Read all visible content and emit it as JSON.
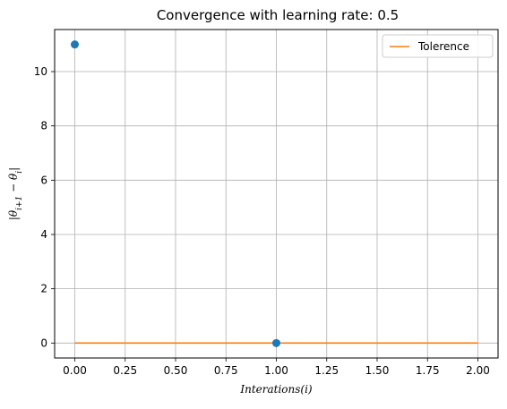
{
  "chart_data": {
    "type": "scatter",
    "title": "Convergence with learning rate: 0.5",
    "xlabel": "Interations(i)",
    "ylabel": "|θ_{i+1} − θ_i|",
    "xlim": [
      -0.1,
      2.1
    ],
    "ylim": [
      -0.55,
      11.55
    ],
    "xticks": [
      0.0,
      0.25,
      0.5,
      0.75,
      1.0,
      1.25,
      1.5,
      1.75,
      2.0
    ],
    "xtick_labels": [
      "0.00",
      "0.25",
      "0.50",
      "0.75",
      "1.00",
      "1.25",
      "1.50",
      "1.75",
      "2.00"
    ],
    "yticks": [
      0,
      2,
      4,
      6,
      8,
      10
    ],
    "ytick_labels": [
      "0",
      "2",
      "4",
      "6",
      "8",
      "10"
    ],
    "grid": true,
    "legend_position": "top-right",
    "series": [
      {
        "name": "",
        "kind": "scatter",
        "color": "#1f77b4",
        "x": [
          0,
          1
        ],
        "y": [
          11,
          0
        ]
      },
      {
        "name": "Tolerence",
        "kind": "line",
        "color": "#ff7f0e",
        "x": [
          0,
          2
        ],
        "y": [
          0.001,
          0.001
        ]
      }
    ]
  }
}
